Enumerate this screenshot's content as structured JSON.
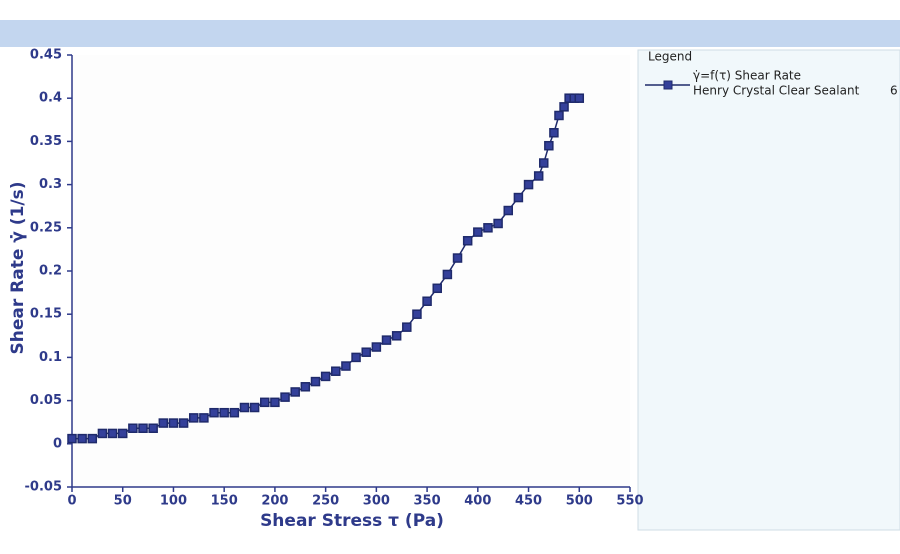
{
  "chart_data": {
    "type": "scatter",
    "x_label": "Shear Stress τ (Pa)",
    "y_label": "Shear Rate γ̇ (1/s)",
    "legend_title": "Legend",
    "legend_suffix": "6",
    "xlim": [
      0,
      550
    ],
    "xticks": [
      0,
      50,
      100,
      150,
      200,
      250,
      300,
      350,
      400,
      450,
      500,
      550
    ],
    "ylim": [
      -0.05,
      0.45
    ],
    "yticks": [
      -0.05,
      0,
      0.05,
      0.1,
      0.15,
      0.2,
      0.25,
      0.3,
      0.35,
      0.4,
      0.45
    ],
    "grid": false,
    "series": [
      {
        "name": "γ̇=f(τ) Shear Rate",
        "subname": "Henry Crystal Clear Sealant",
        "color": "#1f2a6b",
        "x": [
          0,
          10,
          20,
          30,
          40,
          50,
          60,
          70,
          80,
          90,
          100,
          110,
          120,
          130,
          140,
          150,
          160,
          170,
          180,
          190,
          200,
          210,
          220,
          230,
          240,
          250,
          260,
          270,
          280,
          290,
          300,
          310,
          320,
          330,
          340,
          350,
          360,
          370,
          380,
          390,
          400,
          410,
          420,
          430,
          440,
          450,
          460,
          465,
          470,
          475,
          480,
          485,
          490,
          495,
          500
        ],
        "values": [
          0.006,
          0.006,
          0.006,
          0.012,
          0.012,
          0.012,
          0.018,
          0.018,
          0.018,
          0.024,
          0.024,
          0.024,
          0.03,
          0.03,
          0.036,
          0.036,
          0.036,
          0.042,
          0.042,
          0.048,
          0.048,
          0.054,
          0.06,
          0.066,
          0.072,
          0.078,
          0.084,
          0.09,
          0.1,
          0.106,
          0.112,
          0.12,
          0.125,
          0.135,
          0.15,
          0.165,
          0.18,
          0.196,
          0.215,
          0.235,
          0.245,
          0.25,
          0.255,
          0.27,
          0.285,
          0.3,
          0.31,
          0.325,
          0.345,
          0.36,
          0.38,
          0.39,
          0.4,
          0.4,
          0.4
        ]
      }
    ]
  }
}
